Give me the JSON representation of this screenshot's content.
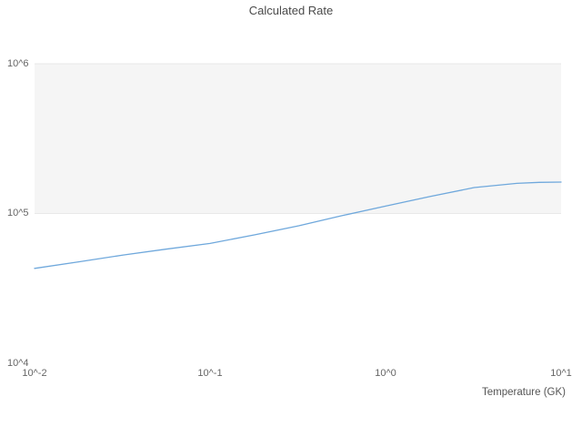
{
  "chart_data": {
    "type": "line",
    "title": "Calculated Rate",
    "xlabel": "Temperature (GK)",
    "ylabel": "",
    "xscale": "log",
    "yscale": "log",
    "xlim": [
      0.01,
      10
    ],
    "ylim": [
      10000,
      1000000
    ],
    "x_tick_labels": [
      "10^-2",
      "10^-1",
      "10^0",
      "10^1"
    ],
    "y_tick_labels": [
      "10^6",
      "10^5",
      "10^4"
    ],
    "y_gridline_values": [
      100000,
      1000000
    ],
    "band": {
      "from": 100000,
      "to": 1000000,
      "color": "#f5f5f5"
    },
    "grid_color": "#e8e8e8",
    "series": [
      {
        "name": "Calculated Rate",
        "color": "#6fa8dc",
        "x": [
          0.01,
          0.018,
          0.032,
          0.056,
          0.1,
          0.18,
          0.32,
          0.56,
          1.0,
          1.8,
          3.2,
          5.6,
          7.5,
          10
        ],
        "y": [
          43000,
          47600,
          52800,
          57800,
          63100,
          72100,
          82800,
          96600,
          112000,
          130000,
          149000,
          159000,
          161500,
          162000
        ]
      }
    ]
  }
}
